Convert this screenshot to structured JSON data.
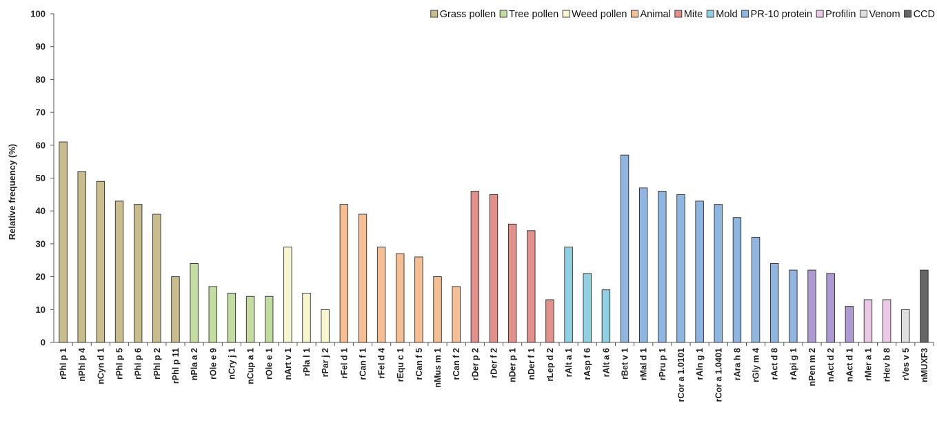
{
  "chart_data": {
    "type": "bar",
    "title": "",
    "xlabel": "",
    "ylabel": "Relative frequency (%)",
    "ylim": [
      0,
      100
    ],
    "yticks": [
      0,
      10,
      20,
      30,
      40,
      50,
      60,
      70,
      80,
      90,
      100
    ],
    "grid": false,
    "legend_position": "top-right",
    "legend": [
      {
        "name": "Grass pollen",
        "color": "#c9bd8e"
      },
      {
        "name": "Tree pollen",
        "color": "#c3dca0"
      },
      {
        "name": "Weed pollen",
        "color": "#f7f6cf"
      },
      {
        "name": "Animal",
        "color": "#f6bf93"
      },
      {
        "name": "Mite",
        "color": "#e1908c"
      },
      {
        "name": "Mold",
        "color": "#8fd1e3"
      },
      {
        "name": "PR-10 protein",
        "color": "#8fb5e1"
      },
      {
        "name": "Profilin",
        "color": "#ecc8e7"
      },
      {
        "name": "Venom",
        "color": "#dfdfdf"
      },
      {
        "name": "CCD",
        "color": "#666666"
      }
    ],
    "categories": [
      "rPhl p 1",
      "nPhl p 4",
      "nCyn d 1",
      "rPhl p 5",
      "rPhl p 6",
      "rPhl p 2",
      "rPhl p 11",
      "nPla a 2",
      "rOle e 9",
      "nCry j 1",
      "nCup a 1",
      "rOle e 1",
      "nArt v 1",
      "rPla l 1",
      "rPar j 2",
      "rFel d 1",
      "rCan f 1",
      "rFel d 4",
      "rEqu c 1",
      "rCan f 5",
      "nMus m 1",
      "rCan f 2",
      "rDer p 2",
      "rDer f 2",
      "nDer p 1",
      "nDer f 1",
      "rLep d 2",
      "rAlt a 1",
      "rAsp f 6",
      "rAlt a 6",
      "rBet v 1",
      "rMal d 1",
      "rPru p 1",
      "rCor a 1.0101",
      "rAln g 1",
      "rCor a 1.0401",
      "rAra h 8",
      "rGly m 4",
      "rAct d 8",
      "rApi g 1",
      "nPen m 2",
      "nAct d 2",
      "nAct d 1",
      "rMer a 1",
      "rHev b 8",
      "rVes v 5",
      "nMUXF3"
    ],
    "values": [
      61,
      52,
      49,
      43,
      42,
      39,
      20,
      24,
      17,
      15,
      14,
      14,
      29,
      15,
      10,
      42,
      39,
      29,
      27,
      26,
      20,
      17,
      46,
      45,
      36,
      34,
      13,
      29,
      21,
      16,
      57,
      47,
      46,
      45,
      43,
      42,
      38,
      32,
      24,
      22,
      22,
      21,
      11,
      13,
      13,
      10,
      22
    ],
    "bar_colors": [
      "#c9bd8e",
      "#c9bd8e",
      "#c9bd8e",
      "#c9bd8e",
      "#c9bd8e",
      "#c9bd8e",
      "#c9bd8e",
      "#c3dca0",
      "#c3dca0",
      "#c3dca0",
      "#c3dca0",
      "#c3dca0",
      "#f7f6cf",
      "#f7f6cf",
      "#f7f6cf",
      "#f6bf93",
      "#f6bf93",
      "#f6bf93",
      "#f6bf93",
      "#f6bf93",
      "#f6bf93",
      "#f6bf93",
      "#e1908c",
      "#e1908c",
      "#e1908c",
      "#e1908c",
      "#e1908c",
      "#8fd1e3",
      "#8fd1e3",
      "#8fd1e3",
      "#8fb5e1",
      "#8fb5e1",
      "#8fb5e1",
      "#8fb5e1",
      "#8fb5e1",
      "#8fb5e1",
      "#8fb5e1",
      "#8fb5e1",
      "#8fb5e1",
      "#8fb5e1",
      "#ad9ad2",
      "#ad9ad2",
      "#ad9ad2",
      "#ecc8e7",
      "#ecc8e7",
      "#dfdfdf",
      "#666666"
    ]
  }
}
